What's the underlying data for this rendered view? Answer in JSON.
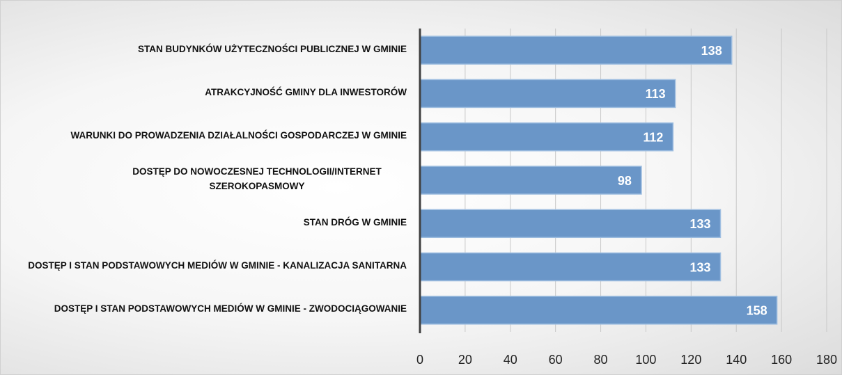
{
  "chart_data": {
    "type": "bar",
    "orientation": "horizontal",
    "categories": [
      "STAN BUDYNKÓW UŻYTECZNOŚCI PUBLICZNEJ W GMINIE",
      "ATRAKCYJNOŚĆ GMINY DLA INWESTORÓW",
      "WARUNKI DO PROWADZENIA DZIAŁALNOŚCI GOSPODARCZEJ W GMINIE",
      "DOSTĘP DO NOWOCZESNEJ TECHNOLOGII/INTERNET SZEROKOPASMOWY",
      "STAN DRÓG W GMINIE",
      "DOSTĘP I STAN PODSTAWOWYCH MEDIÓW W GMINIE - KANALIZACJA SANITARNA",
      "DOSTĘP I STAN PODSTAWOWYCH MEDIÓW W GMINIE - ZWODOCIĄGOWANIE"
    ],
    "values": [
      138,
      113,
      112,
      98,
      133,
      133,
      158
    ],
    "color": "#6a96c8",
    "xlim": [
      0,
      180
    ],
    "xticks": [
      0,
      20,
      40,
      60,
      80,
      100,
      120,
      140,
      160,
      180
    ],
    "grid": true
  }
}
